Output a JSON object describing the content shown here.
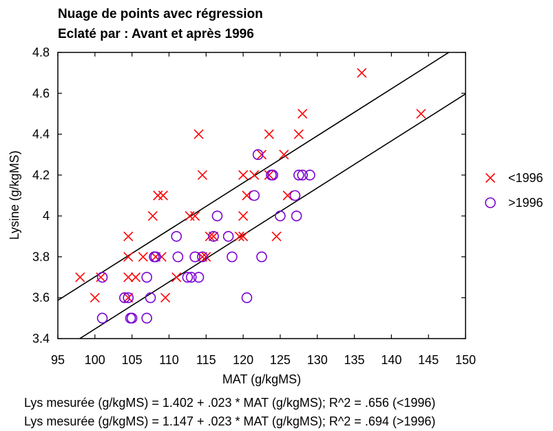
{
  "chart_data": {
    "type": "scatter",
    "title": "Nuage de points avec régression",
    "subtitle": "Eclaté par : Avant et après 1996",
    "xlabel": "MAT (g/kgMS)",
    "ylabel": "Lysine (g/kgMS)",
    "xlim": [
      95,
      150
    ],
    "ylim": [
      3.4,
      4.8
    ],
    "xticks": [
      "95",
      "100",
      "105",
      "110",
      "115",
      "120",
      "125",
      "130",
      "135",
      "140",
      "145",
      "150"
    ],
    "yticks": [
      "3.4",
      "3.6",
      "3.8",
      "4",
      "4.2",
      "4.4",
      "4.6",
      "4.8"
    ],
    "grid": false,
    "legend_position": "right",
    "series": [
      {
        "name": "<1996",
        "marker": "x",
        "color": "#ff0000",
        "points": [
          [
            98,
            3.7
          ],
          [
            100,
            3.6
          ],
          [
            100.8,
            3.7
          ],
          [
            104.5,
            3.9
          ],
          [
            104.5,
            3.8
          ],
          [
            104.5,
            3.7
          ],
          [
            104.5,
            3.6
          ],
          [
            105.5,
            3.7
          ],
          [
            106.5,
            3.8
          ],
          [
            107.8,
            4.0
          ],
          [
            108.2,
            3.8
          ],
          [
            108.5,
            4.1
          ],
          [
            109,
            3.8
          ],
          [
            109.2,
            4.1
          ],
          [
            109.5,
            3.6
          ],
          [
            111,
            3.7
          ],
          [
            112.8,
            4.0
          ],
          [
            113.5,
            4.0
          ],
          [
            114,
            4.4
          ],
          [
            114.5,
            4.2
          ],
          [
            114.5,
            3.8
          ],
          [
            115,
            3.8
          ],
          [
            115.5,
            3.9
          ],
          [
            116,
            3.9
          ],
          [
            119.5,
            3.9
          ],
          [
            120,
            3.9
          ],
          [
            120,
            4.0
          ],
          [
            120,
            4.2
          ],
          [
            120.5,
            4.1
          ],
          [
            121.5,
            4.2
          ],
          [
            122.5,
            4.3
          ],
          [
            123.5,
            4.4
          ],
          [
            123.5,
            4.2
          ],
          [
            124.5,
            3.9
          ],
          [
            125.5,
            4.3
          ],
          [
            126,
            4.1
          ],
          [
            127.5,
            4.4
          ],
          [
            128,
            4.5
          ],
          [
            136,
            4.7
          ],
          [
            144,
            4.5
          ]
        ]
      },
      {
        "name": ">1996",
        "marker": "o",
        "color": "#7b00d4",
        "points": [
          [
            101,
            3.5
          ],
          [
            101,
            3.7
          ],
          [
            104,
            3.6
          ],
          [
            104.5,
            3.6
          ],
          [
            104.8,
            3.5
          ],
          [
            105,
            3.5
          ],
          [
            107,
            3.5
          ],
          [
            107,
            3.7
          ],
          [
            107.5,
            3.6
          ],
          [
            108,
            3.8
          ],
          [
            108.2,
            3.8
          ],
          [
            111,
            3.9
          ],
          [
            111.2,
            3.8
          ],
          [
            112.5,
            3.7
          ],
          [
            113,
            3.7
          ],
          [
            113.5,
            3.8
          ],
          [
            114,
            3.7
          ],
          [
            114.5,
            3.8
          ],
          [
            116,
            3.9
          ],
          [
            116.5,
            4.0
          ],
          [
            118,
            3.9
          ],
          [
            118.5,
            3.8
          ],
          [
            120.5,
            3.6
          ],
          [
            121.5,
            4.1
          ],
          [
            122,
            4.3
          ],
          [
            122.5,
            3.8
          ],
          [
            123.8,
            4.2
          ],
          [
            124,
            4.2
          ],
          [
            125,
            4.0
          ],
          [
            127,
            4.1
          ],
          [
            127.2,
            4.0
          ],
          [
            127.5,
            4.2
          ],
          [
            128,
            4.2
          ],
          [
            129,
            4.2
          ]
        ]
      }
    ],
    "regression_lines": [
      {
        "series": "<1996",
        "intercept": 1.402,
        "slope": 0.023
      },
      {
        "series": ">1996",
        "intercept": 1.147,
        "slope": 0.023
      }
    ]
  },
  "equations": [
    "Lys mesurée (g/kgMS) = 1.402 + .023 * MAT (g/kgMS); R^2 = .656 (<1996)",
    "Lys mesurée (g/kgMS) = 1.147 + .023 * MAT (g/kgMS); R^2 = .694 (>1996)"
  ]
}
